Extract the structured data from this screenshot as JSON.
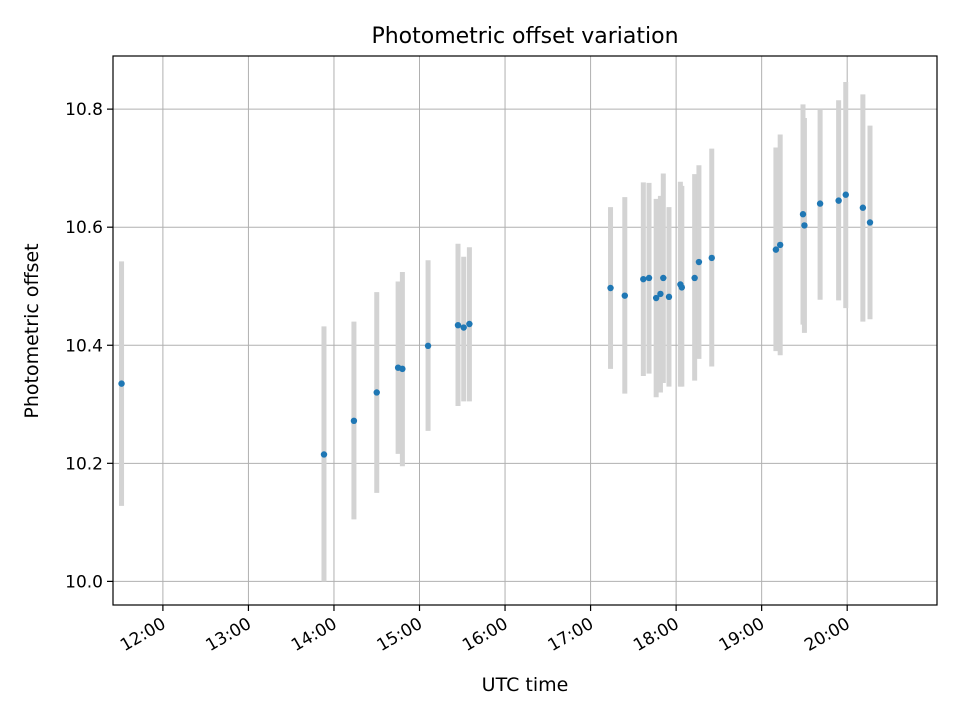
{
  "chart_data": {
    "type": "scatter",
    "title": "Photometric offset variation",
    "xlabel": "UTC time",
    "ylabel": "Photometric offset",
    "xlim": [
      "11:25",
      "21:03"
    ],
    "ylim": [
      9.96,
      10.89
    ],
    "x_ticks": [
      "12:00",
      "13:00",
      "14:00",
      "15:00",
      "16:00",
      "17:00",
      "18:00",
      "19:00",
      "20:00"
    ],
    "y_ticks": [
      "10.0",
      "10.2",
      "10.4",
      "10.6",
      "10.8"
    ],
    "grid": true,
    "colors": {
      "point": "#1f77b4",
      "errorbar": "#d3d3d3",
      "grid": "#b0b0b0"
    },
    "series": [
      {
        "points": [
          {
            "x": "11:31",
            "y": 10.335,
            "err_low": 10.128,
            "err_high": 10.542
          },
          {
            "x": "13:53",
            "y": 10.215,
            "err_low": 10.0,
            "err_high": 10.432
          },
          {
            "x": "14:14",
            "y": 10.272,
            "err_low": 10.105,
            "err_high": 10.44
          },
          {
            "x": "14:30",
            "y": 10.32,
            "err_low": 10.15,
            "err_high": 10.49
          },
          {
            "x": "14:45",
            "y": 10.362,
            "err_low": 10.216,
            "err_high": 10.508
          },
          {
            "x": "14:48",
            "y": 10.36,
            "err_low": 10.195,
            "err_high": 10.524
          },
          {
            "x": "15:06",
            "y": 10.399,
            "err_low": 10.255,
            "err_high": 10.544
          },
          {
            "x": "15:27",
            "y": 10.434,
            "err_low": 10.297,
            "err_high": 10.572
          },
          {
            "x": "15:31",
            "y": 10.43,
            "err_low": 10.305,
            "err_high": 10.55
          },
          {
            "x": "15:35",
            "y": 10.436,
            "err_low": 10.305,
            "err_high": 10.566
          },
          {
            "x": "17:14",
            "y": 10.497,
            "err_low": 10.36,
            "err_high": 10.634
          },
          {
            "x": "17:24",
            "y": 10.484,
            "err_low": 10.318,
            "err_high": 10.651
          },
          {
            "x": "17:37",
            "y": 10.512,
            "err_low": 10.348,
            "err_high": 10.676
          },
          {
            "x": "17:41",
            "y": 10.514,
            "err_low": 10.352,
            "err_high": 10.675
          },
          {
            "x": "17:46",
            "y": 10.48,
            "err_low": 10.312,
            "err_high": 10.648
          },
          {
            "x": "17:49",
            "y": 10.487,
            "err_low": 10.32,
            "err_high": 10.653
          },
          {
            "x": "17:51",
            "y": 10.514,
            "err_low": 10.336,
            "err_high": 10.691
          },
          {
            "x": "17:55",
            "y": 10.482,
            "err_low": 10.33,
            "err_high": 10.634
          },
          {
            "x": "18:03",
            "y": 10.503,
            "err_low": 10.33,
            "err_high": 10.677
          },
          {
            "x": "18:04",
            "y": 10.498,
            "err_low": 10.33,
            "err_high": 10.67
          },
          {
            "x": "18:13",
            "y": 10.514,
            "err_low": 10.34,
            "err_high": 10.69
          },
          {
            "x": "18:16",
            "y": 10.541,
            "err_low": 10.377,
            "err_high": 10.705
          },
          {
            "x": "18:25",
            "y": 10.548,
            "err_low": 10.364,
            "err_high": 10.733
          },
          {
            "x": "19:10",
            "y": 10.562,
            "err_low": 10.39,
            "err_high": 10.735
          },
          {
            "x": "19:13",
            "y": 10.57,
            "err_low": 10.383,
            "err_high": 10.757
          },
          {
            "x": "19:29",
            "y": 10.622,
            "err_low": 10.435,
            "err_high": 10.808
          },
          {
            "x": "19:30",
            "y": 10.603,
            "err_low": 10.421,
            "err_high": 10.785
          },
          {
            "x": "19:41",
            "y": 10.64,
            "err_low": 10.477,
            "err_high": 10.8
          },
          {
            "x": "19:54",
            "y": 10.645,
            "err_low": 10.476,
            "err_high": 10.815
          },
          {
            "x": "19:59",
            "y": 10.655,
            "err_low": 10.463,
            "err_high": 10.846
          },
          {
            "x": "20:11",
            "y": 10.633,
            "err_low": 10.44,
            "err_high": 10.825
          },
          {
            "x": "20:16",
            "y": 10.608,
            "err_low": 10.444,
            "err_high": 10.772
          }
        ]
      }
    ]
  }
}
